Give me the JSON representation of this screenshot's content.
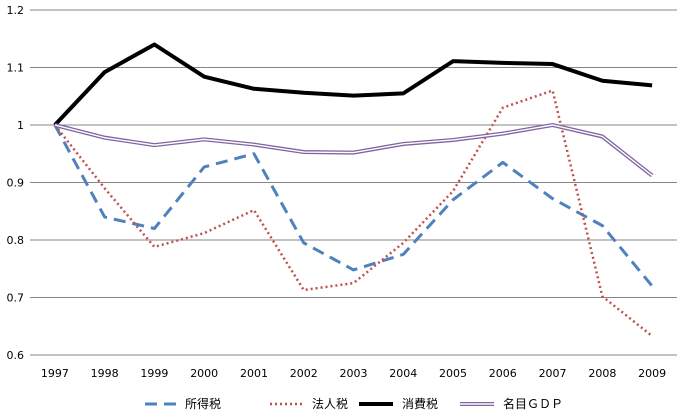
{
  "chart_data": {
    "type": "line",
    "title": "",
    "xlabel": "",
    "ylabel": "",
    "categories": [
      "1997",
      "1998",
      "1999",
      "2000",
      "2001",
      "2002",
      "2003",
      "2004",
      "2005",
      "2006",
      "2007",
      "2008",
      "2009"
    ],
    "ylim": [
      0.6,
      1.2
    ],
    "yticks": [
      "0.6",
      "0.7",
      "0.8",
      "0.9",
      "1",
      "1.1",
      "1.2"
    ],
    "grid": "horizontal",
    "legend_position": "bottom",
    "series": [
      {
        "name": "所得税",
        "color": "#4F81BD",
        "style": "dashed",
        "values": [
          1.0,
          0.84,
          0.82,
          0.927,
          0.95,
          0.795,
          0.748,
          0.775,
          0.87,
          0.935,
          0.872,
          0.825,
          0.72
        ]
      },
      {
        "name": "法人税",
        "color": "#C0504D",
        "style": "dotted",
        "values": [
          1.0,
          0.89,
          0.788,
          0.812,
          0.852,
          0.713,
          0.725,
          0.795,
          0.885,
          1.03,
          1.06,
          0.702,
          0.633
        ]
      },
      {
        "name": "消費税",
        "color": "#000000",
        "style": "solid-thick",
        "values": [
          1.0,
          1.092,
          1.14,
          1.084,
          1.063,
          1.056,
          1.051,
          1.055,
          1.111,
          1.108,
          1.106,
          1.077,
          1.069
        ]
      },
      {
        "name": "名目ＧＤＰ",
        "color": "#8064A2",
        "style": "double",
        "values": [
          1.0,
          0.978,
          0.965,
          0.975,
          0.966,
          0.953,
          0.952,
          0.967,
          0.974,
          0.985,
          1.0,
          0.98,
          0.912
        ]
      }
    ]
  }
}
